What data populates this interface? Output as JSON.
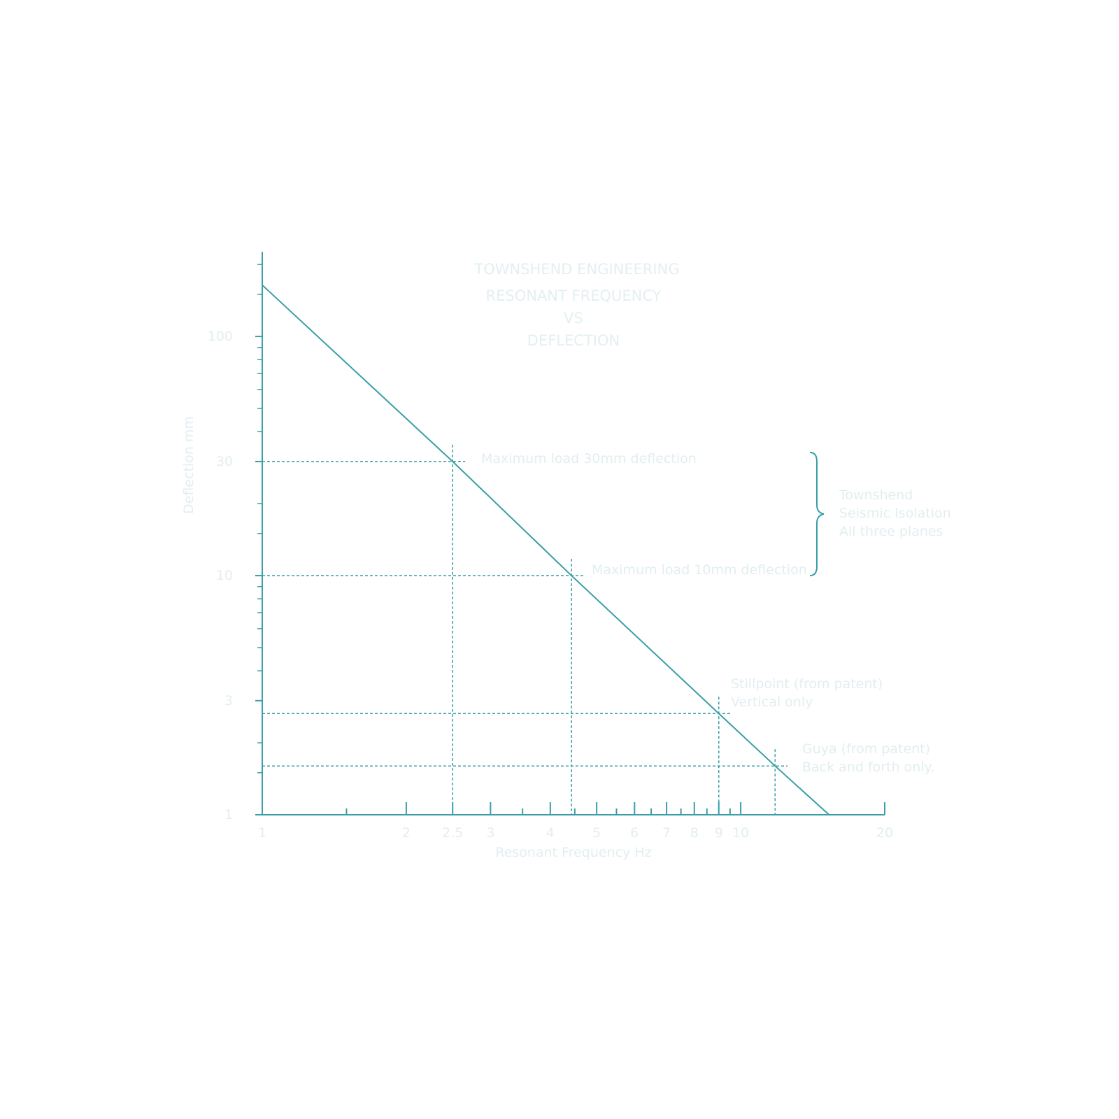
{
  "chart_data": {
    "type": "line",
    "title": "TOWNSHEND ENGINEERING",
    "subtitle": [
      "RESONANT FREQUENCY",
      "VS",
      "DEFLECTION"
    ],
    "x_label": "Resonant Frequency Hz",
    "y_label": "Deflection mm",
    "x": [
      1,
      2.5,
      4.43,
      9,
      11.8,
      15.3
    ],
    "series": [
      {
        "color": "#3a9ea6",
        "values": [
          164,
          30,
          10,
          2.65,
          1.6,
          1
        ]
      }
    ],
    "xlim": [
      1,
      20
    ],
    "ylim": [
      1,
      226
    ],
    "log_x": true,
    "log_y": true,
    "xticks": [
      1,
      2,
      2.5,
      3,
      4,
      5,
      6,
      7,
      8,
      9,
      10,
      20
    ],
    "yticks": [
      1,
      3,
      10,
      30,
      100
    ],
    "minor_xticks": [
      1.5,
      3.5,
      4.5,
      5.5,
      6.5,
      7.5,
      8.5,
      9.5
    ],
    "minor_yticks": [
      1.5,
      2,
      4,
      5,
      6,
      7,
      8,
      9,
      15,
      20,
      40,
      50,
      60,
      70,
      80,
      90,
      150,
      200
    ],
    "annotations": [
      [
        "Maximum load 30mm deflection"
      ],
      [
        "Maximum load 10mm deflection"
      ],
      [
        "Stillpoint (from patent)",
        "Vertical only"
      ],
      [
        "Guya (from patent)",
        "Back and forth only."
      ]
    ],
    "bracket_label": [
      "Townshend",
      "Seismic Isolation",
      "All three planes"
    ]
  }
}
